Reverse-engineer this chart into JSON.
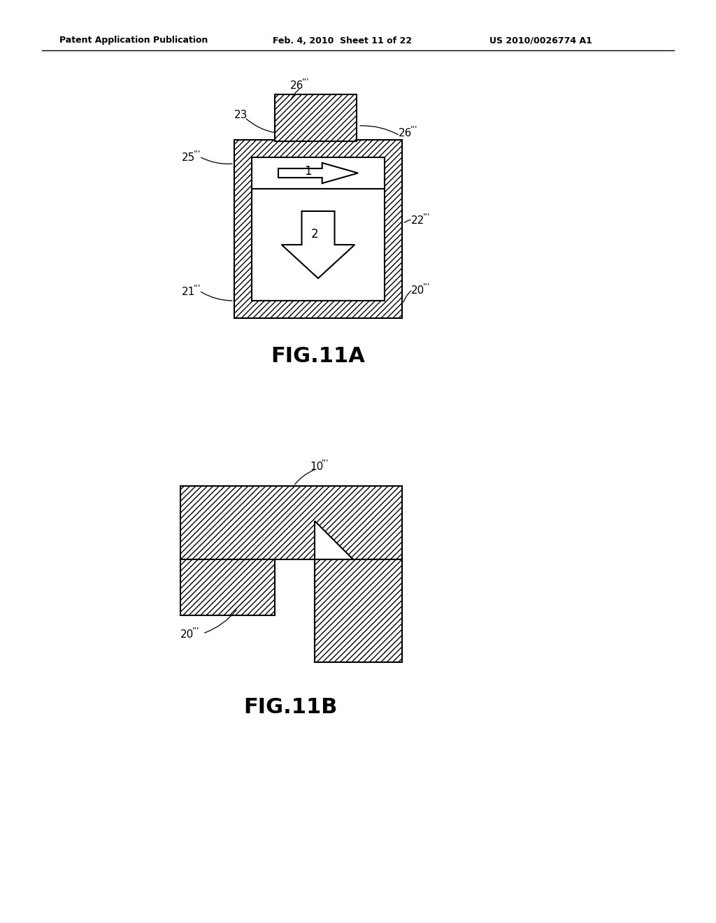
{
  "bg_color": "#ffffff",
  "header_left": "Patent Application Publication",
  "header_mid": "Feb. 4, 2010  Sheet 11 of 22",
  "header_right": "US 2010/0026774 A1",
  "fig11a_label": "FIG.11A",
  "fig11b_label": "FIG.11B",
  "hatch_pattern": "////",
  "line_color": "#000000"
}
